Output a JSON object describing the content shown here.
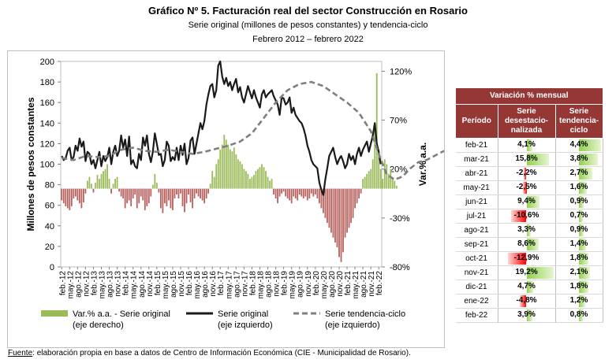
{
  "title": "Gráfico Nº 5. Facturación real del sector Construcción en Rosario",
  "subtitle": "Serie original (millones de pesos constantes) y tendencia-ciclo",
  "period": "Febrero 2012 – febrero 2022",
  "source_label": "Fuente",
  "source_text": ": elaboración propia en base a datos de Centro de Información Económica (CIE - Municipalidad de Rosario).",
  "colors": {
    "bar_pos": "#9bbb59",
    "bar_neg": "#b7625e",
    "line_orig": "#1a1a1a",
    "line_trend": "#7f7f7f",
    "table_header": "#953735",
    "pos_bar": "#92d050",
    "neg_bar": "#ff0000"
  },
  "chart_data": {
    "type": "bar+line",
    "ylabel": "Millones de pesos constantes",
    "y2label": "Var.% a.a.",
    "ylim": [
      0,
      200
    ],
    "y2lim": [
      -80,
      130
    ],
    "y_ticks": [
      "0",
      "20",
      "40",
      "60",
      "80",
      "100",
      "120",
      "140",
      "160",
      "180",
      "200"
    ],
    "y2_ticks": [
      "-80%",
      "-30%",
      "20%",
      "70%",
      "120%"
    ],
    "x_ticks": [
      "feb.-12",
      "may.-12",
      "ago.-12",
      "nov.-12",
      "feb.-13",
      "may.-13",
      "ago.-13",
      "nov.-13",
      "feb.-14",
      "may.-14",
      "ago.-14",
      "nov.-14",
      "feb.-15",
      "may.-15",
      "ago.-15",
      "nov.-15",
      "feb.-16",
      "may.-16",
      "ago.-16",
      "nov.-16",
      "feb.-17",
      "may.-17",
      "ago.-17",
      "nov.-17",
      "feb.-18",
      "may.-18",
      "ago.-18",
      "nov.-18",
      "feb.-19",
      "may.-19",
      "ago.-19",
      "nov.-19",
      "feb.-20",
      "may.-20",
      "ago.-20",
      "nov.-20",
      "feb.-21",
      "may.-21",
      "ago.-21",
      "nov.-21",
      "feb.-22"
    ],
    "series": [
      {
        "name": "Var.% a.a. - Serie original (eje derecho)",
        "type": "bar",
        "axis": "right",
        "values": [
          -12,
          -15,
          -18,
          -20,
          -22,
          -18,
          -10,
          -8,
          -12,
          -15,
          -20,
          -14,
          -5,
          8,
          12,
          5,
          -4,
          6,
          14,
          10,
          15,
          18,
          20,
          25,
          10,
          -5,
          5,
          10,
          12,
          -3,
          -8,
          -10,
          -20,
          -15,
          -12,
          -18,
          -10,
          -6,
          -20,
          -15,
          -8,
          -12,
          -22,
          -18,
          -15,
          -8,
          4,
          15,
          6,
          -4,
          -20,
          -25,
          -15,
          -18,
          -12,
          -20,
          -22,
          -10,
          -6,
          -10,
          -5,
          -18,
          -24,
          -15,
          -6,
          -14,
          -20,
          -10,
          -5,
          -8,
          -10,
          -12,
          -15,
          -10,
          -5,
          5,
          18,
          12,
          25,
          30,
          40,
          45,
          55,
          50,
          45,
          40,
          38,
          42,
          35,
          30,
          28,
          25,
          20,
          18,
          15,
          10,
          12,
          14,
          18,
          20,
          22,
          25,
          22,
          18,
          12,
          8,
          10,
          -6,
          -10,
          -15,
          -8,
          -5,
          -3,
          -8,
          -10,
          -12,
          -15,
          -8,
          -10,
          -12,
          -6,
          -8,
          -10,
          -8,
          -12,
          -10,
          -5,
          -8,
          -6,
          -10,
          -15,
          -20,
          -25,
          -30,
          -35,
          -40,
          -45,
          -50,
          -55,
          -60,
          -70,
          -75,
          -65,
          -50,
          -45,
          -40,
          -35,
          -30,
          -20,
          -15,
          -10,
          -5,
          10,
          12,
          15,
          18,
          20,
          30,
          60,
          118,
          40,
          20,
          10,
          30,
          25,
          15,
          20,
          10,
          8,
          3
        ]
      },
      {
        "name": "Serie original (eje izquierdo)",
        "type": "line",
        "axis": "left",
        "values": [
          108,
          104,
          106,
          113,
          116,
          104,
          107,
          118,
          113,
          125,
          117,
          122,
          103,
          112,
          110,
          100,
          104,
          96,
          104,
          112,
          98,
          108,
          103,
          107,
          116,
          100,
          112,
          118,
          108,
          113,
          128,
          116,
          124,
          108,
          127,
          100,
          104,
          98,
          96,
          110,
          104,
          126,
          118,
          128,
          110,
          102,
          112,
          130,
          120,
          109,
          110,
          98,
          104,
          122,
          118,
          103,
          107,
          104,
          116,
          104,
          118,
          109,
          120,
          100,
          106,
          123,
          126,
          110,
          120,
          130,
          140,
          134,
          142,
          158,
          168,
          176,
          178,
          165,
          172,
          196,
          200,
          185,
          178,
          184,
          176,
          180,
          172,
          178,
          183,
          170,
          175,
          165,
          160,
          168,
          176,
          170,
          164,
          172,
          165,
          160,
          155,
          168,
          172,
          165,
          168,
          170,
          172,
          166,
          162,
          158,
          148,
          165,
          164,
          158,
          160,
          165,
          150,
          155,
          148,
          145,
          142,
          140,
          135,
          128,
          118,
          112,
          104,
          100,
          98,
          96,
          82,
          75,
          70,
          85,
          96,
          108,
          112,
          116,
          107,
          100,
          105,
          108,
          103,
          96,
          100,
          110,
          104,
          108,
          100,
          110,
          116,
          108,
          114,
          118,
          122,
          112,
          120,
          128,
          140,
          120,
          112,
          100
        ]
      },
      {
        "name": "Serie tendencia-ciclo (eje izquierdo)",
        "type": "line",
        "axis": "left",
        "values": [
          [
            0,
            106
          ],
          [
            6,
            104
          ],
          [
            12,
            108
          ],
          [
            18,
            107
          ],
          [
            24,
            108
          ],
          [
            30,
            114
          ],
          [
            36,
            116
          ],
          [
            42,
            113
          ],
          [
            48,
            112
          ],
          [
            54,
            114
          ],
          [
            60,
            112
          ],
          [
            66,
            110
          ],
          [
            72,
            112
          ],
          [
            78,
            115
          ],
          [
            84,
            118
          ],
          [
            90,
            122
          ],
          [
            96,
            130
          ],
          [
            102,
            145
          ],
          [
            108,
            160
          ],
          [
            114,
            172
          ],
          [
            120,
            178
          ],
          [
            126,
            180
          ],
          [
            132,
            176
          ],
          [
            138,
            168
          ],
          [
            144,
            160
          ],
          [
            150,
            150
          ],
          [
            156,
            132
          ],
          [
            160,
            110
          ],
          [
            164,
            90
          ],
          [
            168,
            85
          ],
          [
            172,
            88
          ],
          [
            176,
            96
          ],
          [
            180,
            102
          ],
          [
            184,
            104
          ],
          [
            188,
            108
          ],
          [
            192,
            112
          ],
          [
            196,
            115
          ],
          [
            201,
            117
          ]
        ]
      }
    ]
  },
  "table": {
    "title": "Variación % mensual",
    "headers": [
      "Período",
      "Serie desestacio-nalizada",
      "Serie tendencia-ciclo"
    ],
    "rows": [
      {
        "period": "feb-21",
        "s1": "4,1%",
        "v1": 4.1,
        "s2": "4,4%",
        "v2": 4.4
      },
      {
        "period": "mar-21",
        "s1": "15,8%",
        "v1": 15.8,
        "s2": "3,8%",
        "v2": 3.8
      },
      {
        "period": "abr-21",
        "s1": "-2,2%",
        "v1": -2.2,
        "s2": "2,7%",
        "v2": 2.7
      },
      {
        "period": "may-21",
        "s1": "-2,5%",
        "v1": -2.5,
        "s2": "1,6%",
        "v2": 1.6
      },
      {
        "period": "jun-21",
        "s1": "9,4%",
        "v1": 9.4,
        "s2": "0,9%",
        "v2": 0.9
      },
      {
        "period": "jul-21",
        "s1": "-10,6%",
        "v1": -10.6,
        "s2": "0,7%",
        "v2": 0.7
      },
      {
        "period": "ago-21",
        "s1": "3,3%",
        "v1": 3.3,
        "s2": "0,9%",
        "v2": 0.9
      },
      {
        "period": "sep-21",
        "s1": "8,6%",
        "v1": 8.6,
        "s2": "1,4%",
        "v2": 1.4
      },
      {
        "period": "oct-21",
        "s1": "-12,9%",
        "v1": -12.9,
        "s2": "1,8%",
        "v2": 1.8
      },
      {
        "period": "nov-21",
        "s1": "19,2%",
        "v1": 19.2,
        "s2": "2,1%",
        "v2": 2.1
      },
      {
        "period": "dic-21",
        "s1": "4,7%",
        "v1": 4.7,
        "s2": "1,8%",
        "v2": 1.8
      },
      {
        "period": "ene-22",
        "s1": "-4,8%",
        "v1": -4.8,
        "s2": "1,2%",
        "v2": 1.2
      },
      {
        "period": "feb-22",
        "s1": "3,9%",
        "v1": 3.9,
        "s2": "0,8%",
        "v2": 0.8
      }
    ]
  }
}
